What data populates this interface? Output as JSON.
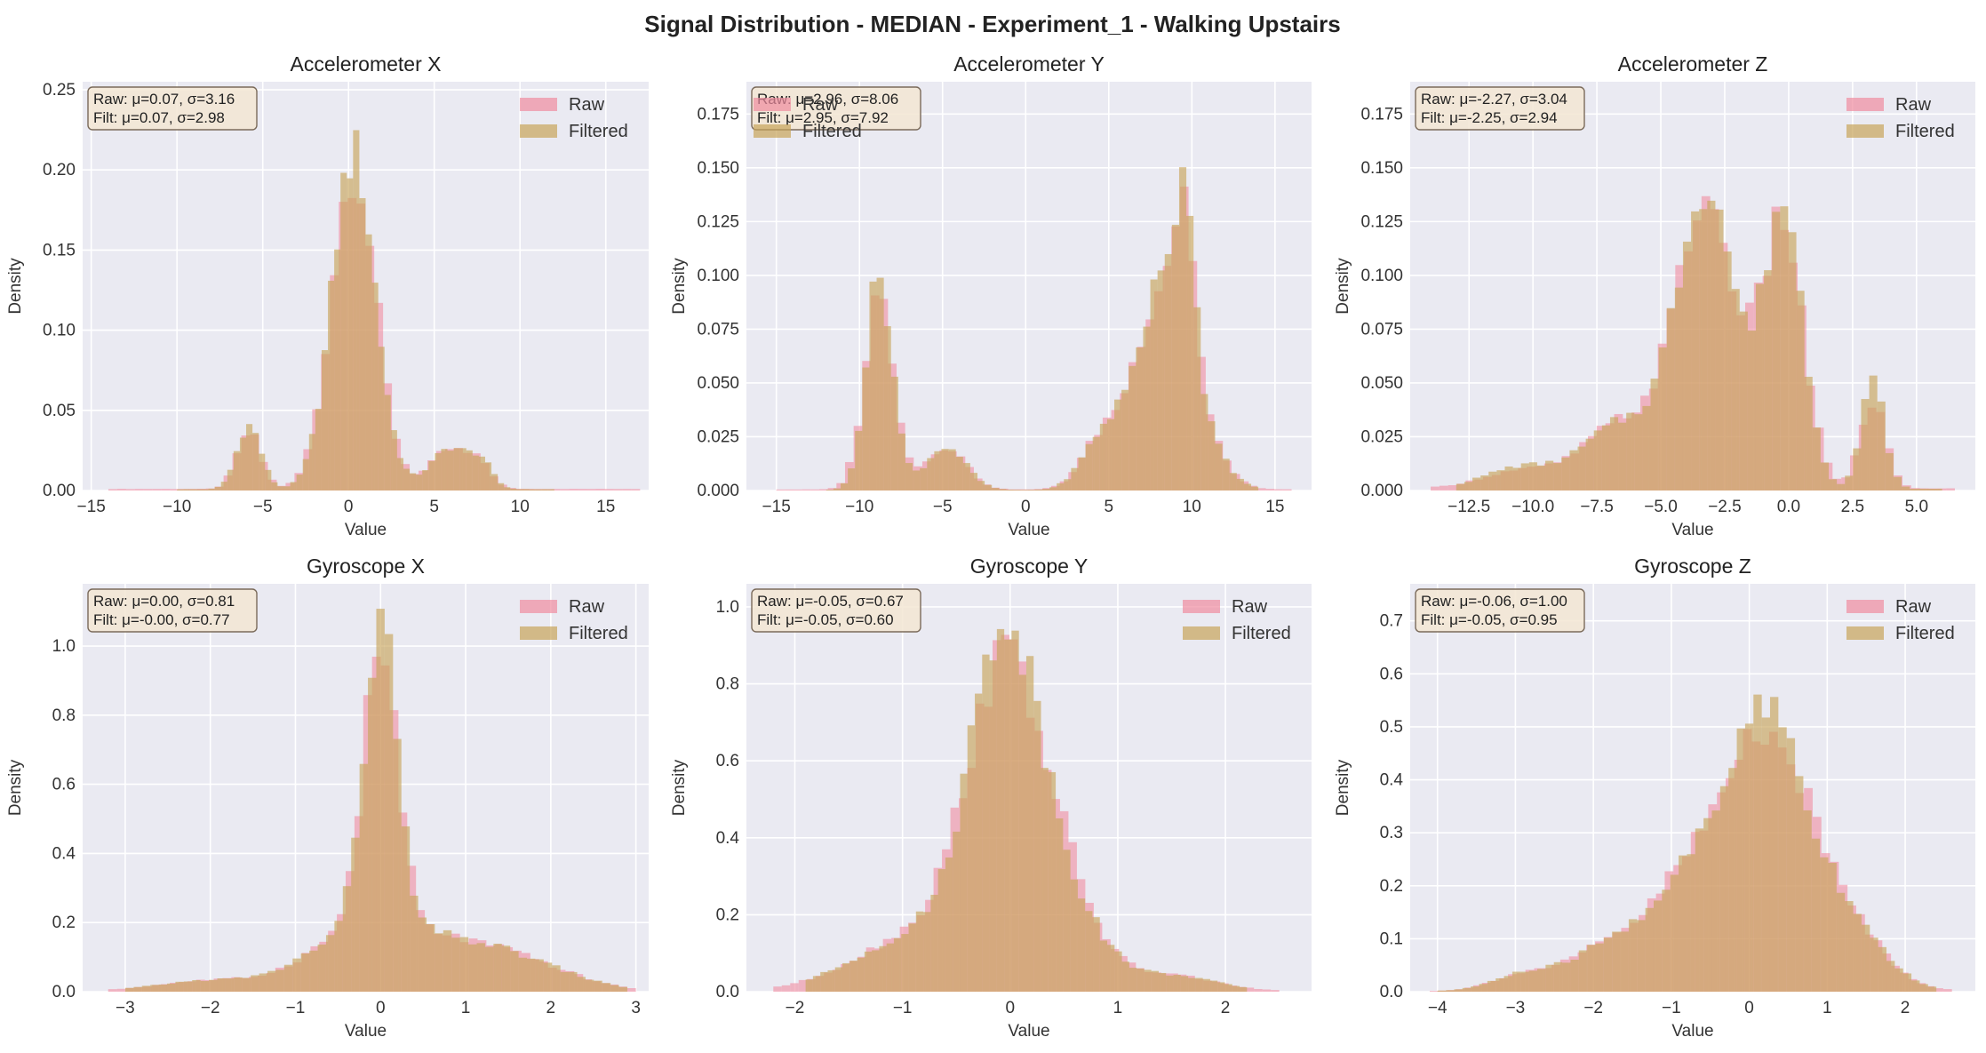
{
  "figure": {
    "suptitle": "Signal Distribution - MEDIAN - Experiment_1 - Walking Upstairs"
  },
  "style": {
    "raw_color": "#f08ca0",
    "filtered_color": "#c8a45a",
    "plot_bg": "#eaeaf2",
    "grid_color": "#ffffff",
    "statbox_fill": "#f3e6d3",
    "statbox_edge": "#7a6a5a"
  },
  "chart_data": [
    {
      "type": "histogram",
      "title": "Accelerometer X",
      "xlabel": "Value",
      "ylabel": "Density",
      "xlim": [
        -15.5,
        17.5
      ],
      "ylim": [
        0,
        0.255
      ],
      "xticks": [
        -15,
        -10,
        -5,
        0,
        5,
        10,
        15
      ],
      "xtick_labels": [
        "−15",
        "−10",
        "−5",
        "0",
        "5",
        "10",
        "15"
      ],
      "yticks": [
        0.0,
        0.05,
        0.1,
        0.15,
        0.2,
        0.25
      ],
      "ytick_labels": [
        "0.00",
        "0.05",
        "0.10",
        "0.15",
        "0.20",
        "0.25"
      ],
      "legend": [
        "Raw",
        "Filtered"
      ],
      "legend_position": "top-right",
      "stats": [
        "Raw: μ=0.07, σ=3.16",
        "Filt: μ=0.07, σ=2.98"
      ],
      "series": [
        {
          "name": "Raw",
          "peaks": [
            [
              -5.8,
              0.035,
              0.7
            ],
            [
              0.3,
              0.2,
              1.3
            ],
            [
              6.0,
              0.025,
              1.2
            ],
            [
              7.8,
              0.01,
              0.6
            ]
          ],
          "base": 0.001,
          "range": [
            -14,
            17
          ]
        },
        {
          "name": "Filtered",
          "peaks": [
            [
              -5.8,
              0.04,
              0.7
            ],
            [
              0.3,
              0.21,
              1.25
            ],
            [
              6.0,
              0.026,
              1.2
            ],
            [
              7.8,
              0.012,
              0.6
            ]
          ],
          "base": 0.0008,
          "range": [
            -10,
            12
          ]
        }
      ]
    },
    {
      "type": "histogram",
      "title": "Accelerometer Y",
      "xlabel": "Value",
      "ylabel": "Density",
      "xlim": [
        -16.8,
        17.2
      ],
      "ylim": [
        0,
        0.19
      ],
      "xticks": [
        -15,
        -10,
        -5,
        0,
        5,
        10,
        15
      ],
      "xtick_labels": [
        "−15",
        "−10",
        "−5",
        "0",
        "5",
        "10",
        "15"
      ],
      "yticks": [
        0.0,
        0.025,
        0.05,
        0.075,
        0.1,
        0.125,
        0.15,
        0.175
      ],
      "ytick_labels": [
        "0.000",
        "0.025",
        "0.050",
        "0.075",
        "0.100",
        "0.125",
        "0.150",
        "0.175"
      ],
      "legend": [
        "Raw",
        "Filtered"
      ],
      "legend_position": "top-left",
      "stats": [
        "Raw: μ=2.96, σ=8.06",
        "Filt: μ=2.95, σ=7.92"
      ],
      "series": [
        {
          "name": "Raw",
          "peaks": [
            [
              -8.8,
              0.09,
              0.9
            ],
            [
              -4.8,
              0.02,
              1.2
            ],
            [
              8.5,
              0.1,
              1.8
            ],
            [
              9.6,
              0.06,
              0.5
            ],
            [
              4.5,
              0.02,
              1.2
            ]
          ],
          "base": 0.0005,
          "range": [
            -15,
            16
          ]
        },
        {
          "name": "Filtered",
          "peaks": [
            [
              -8.8,
              0.1,
              0.8
            ],
            [
              -4.8,
              0.02,
              1.2
            ],
            [
              8.5,
              0.1,
              1.8
            ],
            [
              9.6,
              0.075,
              0.45
            ],
            [
              4.5,
              0.02,
              1.2
            ]
          ],
          "base": 0.0003,
          "range": [
            -12,
            14
          ]
        }
      ]
    },
    {
      "type": "histogram",
      "title": "Accelerometer Z",
      "xlabel": "Value",
      "ylabel": "Density",
      "xlim": [
        -14.8,
        7.3
      ],
      "ylim": [
        0,
        0.19
      ],
      "xticks": [
        -12.5,
        -10.0,
        -7.5,
        -5.0,
        -2.5,
        0.0,
        2.5,
        5.0
      ],
      "xtick_labels": [
        "−12.5",
        "−10.0",
        "−7.5",
        "−5.0",
        "−2.5",
        "0.0",
        "2.5",
        "5.0"
      ],
      "yticks": [
        0.0,
        0.025,
        0.05,
        0.075,
        0.1,
        0.125,
        0.15,
        0.175
      ],
      "ytick_labels": [
        "0.000",
        "0.025",
        "0.050",
        "0.075",
        "0.100",
        "0.125",
        "0.150",
        "0.175"
      ],
      "legend": [
        "Raw",
        "Filtered"
      ],
      "legend_position": "top-right",
      "stats": [
        "Raw: μ=-2.27, σ=3.04",
        "Filt: μ=-2.25, σ=2.94"
      ],
      "series": [
        {
          "name": "Raw",
          "peaks": [
            [
              -3.2,
              0.13,
              1.2
            ],
            [
              -0.2,
              0.12,
              0.8
            ],
            [
              3.3,
              0.04,
              0.5
            ],
            [
              -6.5,
              0.03,
              1.5
            ],
            [
              -10.5,
              0.008,
              1.5
            ]
          ],
          "base": 0.001,
          "range": [
            -14,
            6.5
          ]
        },
        {
          "name": "Filtered",
          "peaks": [
            [
              -3.2,
              0.14,
              1.15
            ],
            [
              -0.2,
              0.13,
              0.75
            ],
            [
              3.3,
              0.05,
              0.45
            ],
            [
              -6.5,
              0.03,
              1.5
            ],
            [
              -10.5,
              0.01,
              1.4
            ]
          ],
          "base": 0.0008,
          "range": [
            -13,
            6
          ]
        }
      ]
    },
    {
      "type": "histogram",
      "title": "Gyroscope X",
      "xlabel": "Value",
      "ylabel": "Density",
      "xlim": [
        -3.5,
        3.15
      ],
      "ylim": [
        0,
        1.18
      ],
      "xticks": [
        -3,
        -2,
        -1,
        0,
        1,
        2,
        3
      ],
      "xtick_labels": [
        "−3",
        "−2",
        "−1",
        "0",
        "1",
        "2",
        "3"
      ],
      "yticks": [
        0.0,
        0.2,
        0.4,
        0.6,
        0.8,
        1.0
      ],
      "ytick_labels": [
        "0.0",
        "0.2",
        "0.4",
        "0.6",
        "0.8",
        "1.0"
      ],
      "legend": [
        "Raw",
        "Filtered"
      ],
      "legend_position": "top-right",
      "stats": [
        "Raw: μ=0.00, σ=0.81",
        "Filt: μ=-0.00, σ=0.77"
      ],
      "series": [
        {
          "name": "Raw",
          "peaks": [
            [
              0.0,
              0.8,
              0.2
            ],
            [
              -0.3,
              0.15,
              0.6
            ],
            [
              0.8,
              0.12,
              0.7
            ],
            [
              1.8,
              0.05,
              0.6
            ],
            [
              -2.0,
              0.03,
              0.6
            ]
          ],
          "base": 0.002,
          "range": [
            -3.2,
            3.0
          ]
        },
        {
          "name": "Filtered",
          "peaks": [
            [
              0.0,
              0.88,
              0.19
            ],
            [
              -0.3,
              0.15,
              0.6
            ],
            [
              0.8,
              0.12,
              0.7
            ],
            [
              1.8,
              0.05,
              0.6
            ],
            [
              -2.0,
              0.03,
              0.6
            ]
          ],
          "base": 0.002,
          "range": [
            -3.0,
            2.9
          ]
        }
      ]
    },
    {
      "type": "histogram",
      "title": "Gyroscope Y",
      "xlabel": "Value",
      "ylabel": "Density",
      "xlim": [
        -2.45,
        2.8
      ],
      "ylim": [
        0,
        1.06
      ],
      "xticks": [
        -2,
        -1,
        0,
        1,
        2
      ],
      "xtick_labels": [
        "−2",
        "−1",
        "0",
        "1",
        "2"
      ],
      "yticks": [
        0.0,
        0.2,
        0.4,
        0.6,
        0.8,
        1.0
      ],
      "ytick_labels": [
        "0.0",
        "0.2",
        "0.4",
        "0.6",
        "0.8",
        "1.0"
      ],
      "legend": [
        "Raw",
        "Filtered"
      ],
      "legend_position": "top-right",
      "stats": [
        "Raw: μ=-0.05, σ=0.67",
        "Filt: μ=-0.05, σ=0.60"
      ],
      "series": [
        {
          "name": "Raw",
          "peaks": [
            [
              -0.05,
              0.75,
              0.35
            ],
            [
              0.5,
              0.2,
              0.35
            ],
            [
              -0.8,
              0.15,
              0.6
            ],
            [
              1.5,
              0.04,
              0.4
            ]
          ],
          "base": 0.002,
          "range": [
            -2.2,
            2.5
          ]
        },
        {
          "name": "Filtered",
          "peaks": [
            [
              -0.05,
              0.85,
              0.32
            ],
            [
              0.5,
              0.2,
              0.35
            ],
            [
              -0.8,
              0.15,
              0.6
            ],
            [
              1.5,
              0.04,
              0.4
            ]
          ],
          "base": 0.002,
          "range": [
            -1.9,
            2.2
          ]
        }
      ]
    },
    {
      "type": "histogram",
      "title": "Gyroscope Z",
      "xlabel": "Value",
      "ylabel": "Density",
      "xlim": [
        -4.35,
        2.9
      ],
      "ylim": [
        0,
        0.77
      ],
      "xticks": [
        -4,
        -3,
        -2,
        -1,
        0,
        1,
        2
      ],
      "xtick_labels": [
        "−4",
        "−3",
        "−2",
        "−1",
        "0",
        "1",
        "2"
      ],
      "yticks": [
        0.0,
        0.1,
        0.2,
        0.3,
        0.4,
        0.5,
        0.6,
        0.7
      ],
      "ytick_labels": [
        "0.0",
        "0.1",
        "0.2",
        "0.3",
        "0.4",
        "0.5",
        "0.6",
        "0.7"
      ],
      "legend": [
        "Raw",
        "Filtered"
      ],
      "legend_position": "top-right",
      "stats": [
        "Raw: μ=-0.06, σ=1.00",
        "Filt: μ=-0.05, σ=0.95"
      ],
      "series": [
        {
          "name": "Raw",
          "peaks": [
            [
              0.2,
              0.4,
              0.45
            ],
            [
              -0.7,
              0.22,
              0.5
            ],
            [
              1.0,
              0.18,
              0.55
            ],
            [
              -1.8,
              0.08,
              0.5
            ],
            [
              -2.9,
              0.03,
              0.4
            ]
          ],
          "base": 0.001,
          "range": [
            -4.1,
            2.6
          ]
        },
        {
          "name": "Filtered",
          "peaks": [
            [
              0.2,
              0.45,
              0.42
            ],
            [
              -0.7,
              0.22,
              0.5
            ],
            [
              1.0,
              0.18,
              0.55
            ],
            [
              -1.8,
              0.08,
              0.5
            ],
            [
              -2.9,
              0.03,
              0.4
            ]
          ],
          "base": 0.001,
          "range": [
            -4.0,
            2.4
          ]
        }
      ]
    }
  ]
}
